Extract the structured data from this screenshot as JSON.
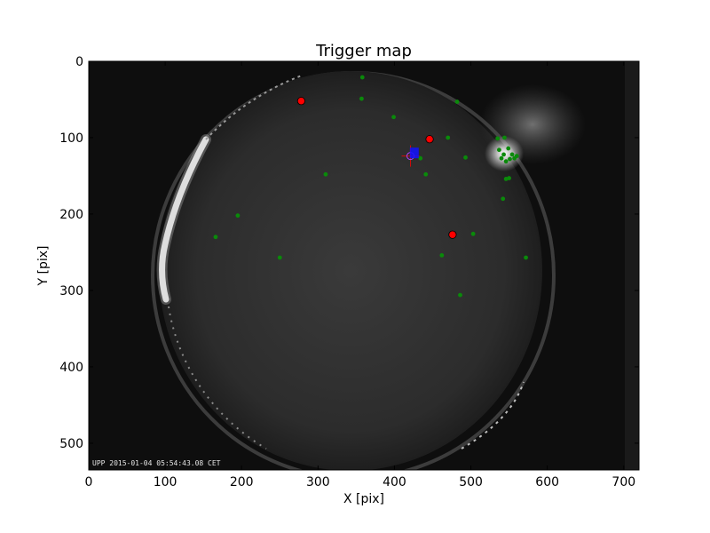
{
  "chart_data": {
    "type": "scatter",
    "title": "Trigger map",
    "xlabel": "X [pix]",
    "ylabel": "Y [pix]",
    "xlim": [
      0,
      720
    ],
    "ylim": [
      0,
      535
    ],
    "y_inverted": true,
    "x_ticks": [
      0,
      100,
      200,
      300,
      400,
      500,
      600,
      700
    ],
    "y_ticks": [
      0,
      100,
      200,
      300,
      400,
      500
    ],
    "background": "all-sky camera image (night sky fisheye)",
    "timestamp": "UPP 2015-01-04 05:54:43.08 CET",
    "series": [
      {
        "marker": "small-dot",
        "color": "#0a8a0a",
        "points": [
          [
            358,
            21
          ],
          [
            357,
            49
          ],
          [
            399,
            73
          ],
          [
            482,
            53
          ],
          [
            470,
            100
          ],
          [
            493,
            126
          ],
          [
            441,
            148
          ],
          [
            434,
            127
          ],
          [
            310,
            148
          ],
          [
            195,
            202
          ],
          [
            166,
            230
          ],
          [
            250,
            257
          ],
          [
            462,
            254
          ],
          [
            503,
            226
          ],
          [
            486,
            306
          ],
          [
            537,
            116
          ],
          [
            540,
            127
          ],
          [
            543,
            122
          ],
          [
            546,
            131
          ],
          [
            549,
            114
          ],
          [
            551,
            128
          ],
          [
            554,
            122
          ],
          [
            557,
            127
          ],
          [
            560,
            124
          ],
          [
            535,
            101
          ],
          [
            544,
            100
          ],
          [
            546,
            154
          ],
          [
            550,
            153
          ],
          [
            542,
            180
          ],
          [
            572,
            257
          ]
        ]
      },
      {
        "marker": "large-circle",
        "color": "#ff0000",
        "points": [
          [
            278,
            52
          ],
          [
            446,
            102
          ],
          [
            476,
            227
          ]
        ]
      },
      {
        "marker": "cross",
        "color": "#ff0000",
        "points": [
          [
            421,
            124
          ]
        ]
      },
      {
        "marker": "square",
        "color": "#1010ff",
        "points": [
          [
            426,
            120
          ]
        ]
      }
    ]
  }
}
